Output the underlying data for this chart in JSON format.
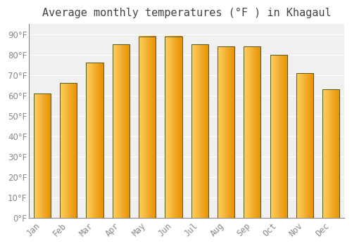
{
  "title": "Average monthly temperatures (°F ) in Khagaul",
  "months": [
    "Jan",
    "Feb",
    "Mar",
    "Apr",
    "May",
    "Jun",
    "Jul",
    "Aug",
    "Sep",
    "Oct",
    "Nov",
    "Dec"
  ],
  "values": [
    61,
    66,
    76,
    85,
    89,
    89,
    85,
    84,
    84,
    80,
    71,
    63
  ],
  "bar_color_left": "#FFD060",
  "bar_color_right": "#E89000",
  "bar_border_color": "#555522",
  "background_color": "#FFFFFF",
  "plot_bg_color": "#F0F0F0",
  "grid_color": "#FFFFFF",
  "tick_label_color": "#888888",
  "title_color": "#444444",
  "ylim": [
    0,
    95
  ],
  "yticks": [
    0,
    10,
    20,
    30,
    40,
    50,
    60,
    70,
    80,
    90
  ],
  "title_fontsize": 11,
  "tick_fontsize": 8.5,
  "bar_width": 0.65
}
